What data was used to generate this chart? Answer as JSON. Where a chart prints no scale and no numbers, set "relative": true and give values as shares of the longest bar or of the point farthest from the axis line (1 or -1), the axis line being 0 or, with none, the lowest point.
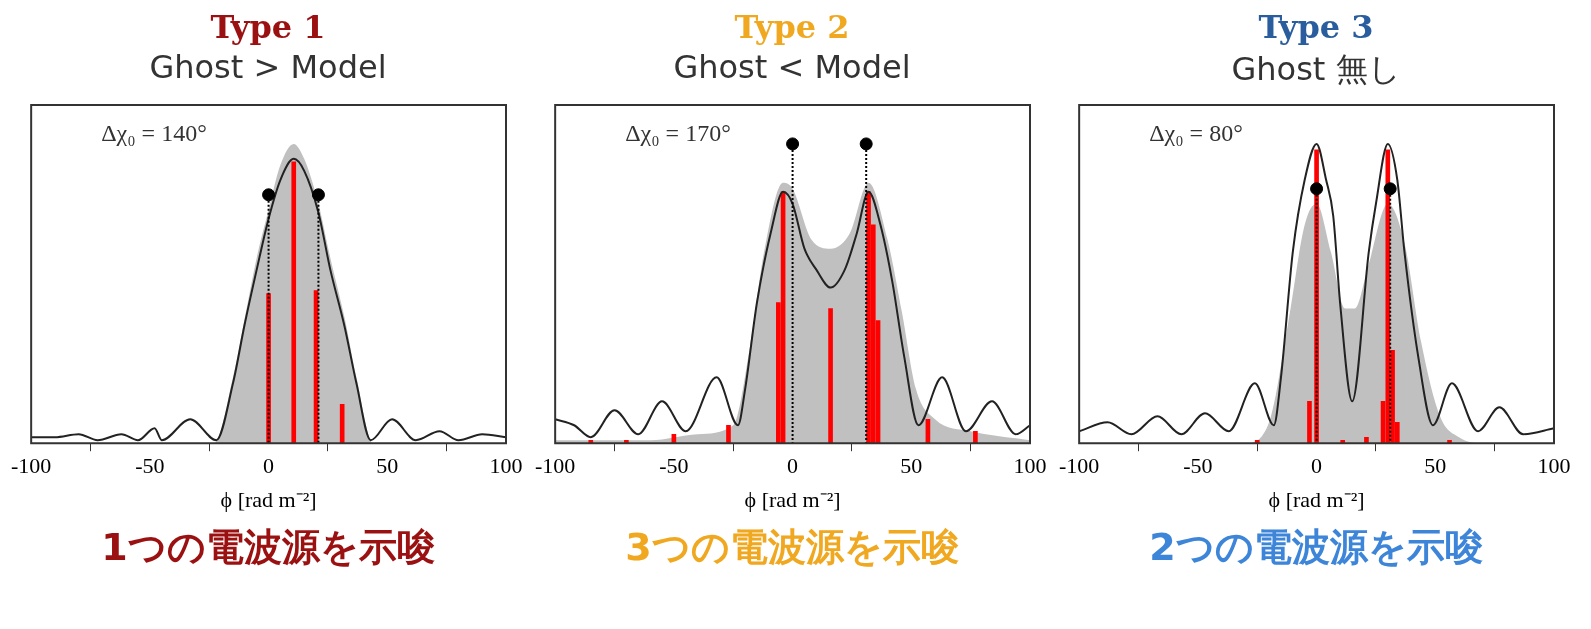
{
  "chart_data": [
    {
      "type": "line",
      "relative": true,
      "title": "Type 1",
      "subtitle": "Ghost > Model",
      "xlabel": "ϕ [rad m⁻²]",
      "annotations": [
        "Δχ₀ = 140°",
        "1つの電波源を示唆"
      ],
      "xlim": [
        -100,
        100
      ],
      "xticks": [
        -100,
        -50,
        0,
        50,
        100
      ],
      "series": [
        {
          "type": "area",
          "color": "#c0c0c0",
          "x": [
            -100,
            -23,
            -15,
            -10,
            -5,
            0,
            5,
            10.6,
            15,
            21,
            26,
            32,
            37,
            44,
            100
          ],
          "values": [
            0,
            0,
            0.22,
            0.42,
            0.62,
            0.78,
            0.93,
            1,
            0.95,
            0.8,
            0.62,
            0.42,
            0.22,
            0,
            0
          ]
        },
        {
          "type": "bar",
          "color": "#ff0000",
          "x": [
            0,
            10.6,
            20,
            31
          ],
          "values": [
            0.5,
            0.94,
            0.51,
            0.13
          ]
        },
        {
          "color": "#222222",
          "x": [
            -100,
            -90,
            -80,
            -72,
            -62,
            -55,
            -48,
            -45,
            -33,
            -22,
            -15,
            -10,
            -5,
            0,
            5,
            10.6,
            15,
            21,
            26,
            32,
            37,
            43,
            52,
            62,
            72,
            80,
            90,
            100
          ],
          "values": [
            0.02,
            0.02,
            0.03,
            0.01,
            0.03,
            0.01,
            0.05,
            0.01,
            0.08,
            0.01,
            0.2,
            0.4,
            0.58,
            0.75,
            0.88,
            0.95,
            0.91,
            0.77,
            0.58,
            0.39,
            0.2,
            0.01,
            0.08,
            0.01,
            0.04,
            0.01,
            0.03,
            0.02
          ]
        },
        {
          "type": "lollipop",
          "color": "#000000",
          "marker": "circle",
          "line_style": "dotted",
          "x": [
            0,
            21
          ],
          "values": [
            0.83,
            0.83
          ]
        }
      ]
    },
    {
      "type": "line",
      "relative": true,
      "title": "Type 2",
      "subtitle": "Ghost < Model",
      "xlabel": "ϕ [rad m⁻²]",
      "annotations": [
        "Δχ₀ = 170°",
        "3つの電波源を示唆"
      ],
      "xlim": [
        -100,
        100
      ],
      "xticks": [
        -100,
        -50,
        0,
        50,
        100
      ],
      "series": [
        {
          "type": "area",
          "color": "#c0c0c0",
          "x": [
            -100,
            -60,
            -40,
            -25,
            -18,
            -12,
            -4,
            0,
            8,
            16,
            24,
            32,
            40,
            46,
            52,
            60,
            75,
            100
          ],
          "values": [
            0.01,
            0.01,
            0.03,
            0.06,
            0.32,
            0.64,
            0.87,
            0.85,
            0.68,
            0.65,
            0.7,
            0.87,
            0.68,
            0.44,
            0.18,
            0.08,
            0.04,
            0.01
          ]
        },
        {
          "type": "bar",
          "color": "#ff0000",
          "x": [
            -85,
            -70,
            -50,
            -27,
            -6,
            -4,
            16,
            32,
            34,
            36,
            57,
            77
          ],
          "values": [
            0.01,
            0.01,
            0.03,
            0.06,
            0.47,
            0.84,
            0.45,
            0.84,
            0.73,
            0.41,
            0.08,
            0.04
          ]
        },
        {
          "color": "#222222",
          "x": [
            -100,
            -92,
            -85,
            -75,
            -65,
            -55,
            -45,
            -32,
            -23,
            -20,
            -15,
            -9,
            -4,
            0,
            5,
            10,
            16,
            22,
            27,
            32,
            37,
            42,
            47,
            53,
            63,
            73,
            84,
            94,
            100
          ],
          "values": [
            0.08,
            0.06,
            0.02,
            0.11,
            0.03,
            0.14,
            0.04,
            0.22,
            0.06,
            0.18,
            0.47,
            0.71,
            0.84,
            0.8,
            0.65,
            0.58,
            0.52,
            0.58,
            0.7,
            0.84,
            0.73,
            0.54,
            0.29,
            0.06,
            0.22,
            0.04,
            0.14,
            0.03,
            0.06
          ]
        },
        {
          "type": "lollipop",
          "color": "#000000",
          "marker": "circle",
          "line_style": "dotted",
          "x": [
            0,
            31
          ],
          "values": [
            1,
            1
          ]
        }
      ]
    },
    {
      "type": "line",
      "relative": true,
      "title": "Type 3",
      "subtitle": "Ghost 無し",
      "xlabel": "ϕ [rad m⁻²]",
      "annotations": [
        "Δχ₀ = 80°",
        "2つの電波源を示唆"
      ],
      "xlim": [
        -100,
        100
      ],
      "xticks": [
        -100,
        -50,
        0,
        50,
        100
      ],
      "series": [
        {
          "type": "area",
          "color": "#c0c0c0",
          "x": [
            -100,
            -40,
            -30,
            -20,
            -12,
            -5,
            0,
            6,
            12,
            16,
            22,
            30,
            37,
            44,
            52,
            60,
            70,
            100
          ],
          "values": [
            0,
            0,
            0,
            0.07,
            0.4,
            0.73,
            0.8,
            0.64,
            0.45,
            0.45,
            0.6,
            0.8,
            0.67,
            0.34,
            0.09,
            0.02,
            0,
            0
          ]
        },
        {
          "type": "bar",
          "color": "#ff0000",
          "x": [
            -25,
            -3,
            0,
            11,
            21,
            28,
            30,
            32,
            34,
            56
          ],
          "values": [
            0.01,
            0.14,
            0.98,
            0.01,
            0.02,
            0.14,
            0.98,
            0.31,
            0.07,
            0.01
          ]
        },
        {
          "color": "#222222",
          "x": [
            -100,
            -88,
            -78,
            -67,
            -57,
            -47,
            -37,
            -26,
            -18,
            -15,
            -10,
            -5,
            0,
            4,
            7,
            10,
            15,
            22,
            25,
            30,
            34,
            37,
            43,
            49,
            57,
            68,
            77,
            87,
            100
          ],
          "values": [
            0.04,
            0.07,
            0.03,
            0.09,
            0.03,
            0.1,
            0.04,
            0.2,
            0.06,
            0.22,
            0.64,
            0.88,
            1,
            0.88,
            0.76,
            0.46,
            0.14,
            0.64,
            0.8,
            1,
            0.88,
            0.64,
            0.28,
            0.06,
            0.2,
            0.04,
            0.12,
            0.03,
            0.05
          ]
        },
        {
          "type": "lollipop",
          "color": "#000000",
          "marker": "circle",
          "line_style": "dotted",
          "x": [
            0,
            31
          ],
          "values": [
            0.85,
            0.85
          ]
        }
      ]
    }
  ]
}
